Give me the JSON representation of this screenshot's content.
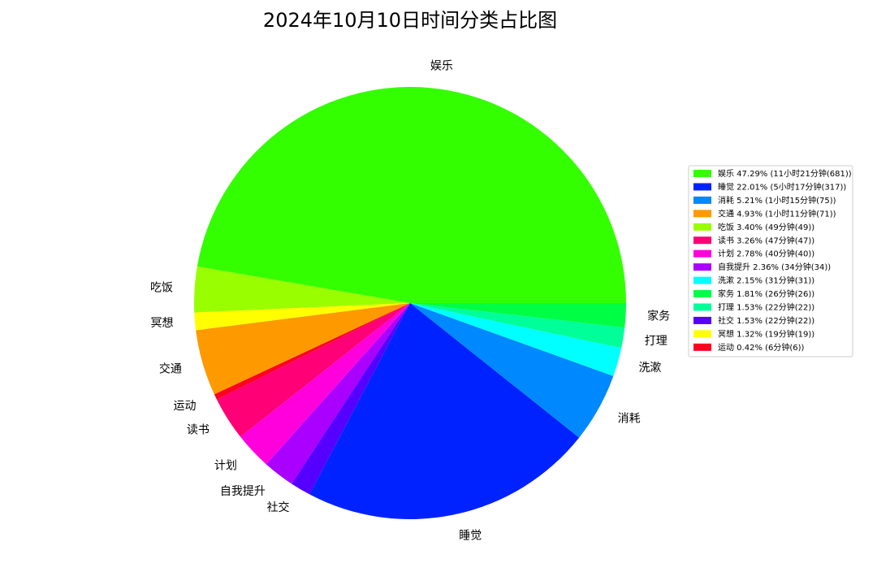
{
  "chart_data": {
    "type": "pie",
    "title": "2024年10月10日时间分类占比图",
    "legend_position": "right",
    "start_angle_deg": 0,
    "direction": "counterclockwise",
    "slices": [
      {
        "label": "娱乐",
        "value": 681,
        "percent_label": "47.29%",
        "duration_label": "11小时21分钟",
        "color": "#33ff00"
      },
      {
        "label": "吃饭",
        "value": 49,
        "percent_label": "3.40%",
        "duration_label": "49分钟",
        "color": "#99ff00"
      },
      {
        "label": "冥想",
        "value": 19,
        "percent_label": "1.32%",
        "duration_label": "19分钟",
        "color": "#ffff00"
      },
      {
        "label": "交通",
        "value": 71,
        "percent_label": "4.93%",
        "duration_label": "1小时11分钟",
        "color": "#ff9900"
      },
      {
        "label": "运动",
        "value": 6,
        "percent_label": "0.42%",
        "duration_label": "6分钟",
        "color": "#ff0022"
      },
      {
        "label": "读书",
        "value": 47,
        "percent_label": "3.26%",
        "duration_label": "47分钟",
        "color": "#ff0077"
      },
      {
        "label": "计划",
        "value": 40,
        "percent_label": "2.78%",
        "duration_label": "40分钟",
        "color": "#ff00dd"
      },
      {
        "label": "自我提升",
        "value": 34,
        "percent_label": "2.36%",
        "duration_label": "34分钟",
        "color": "#aa00ff"
      },
      {
        "label": "社交",
        "value": 22,
        "percent_label": "1.53%",
        "duration_label": "22分钟",
        "color": "#5500ff"
      },
      {
        "label": "睡觉",
        "value": 317,
        "percent_label": "22.01%",
        "duration_label": "5小时17分钟",
        "color": "#0022ff"
      },
      {
        "label": "消耗",
        "value": 75,
        "percent_label": "5.21%",
        "duration_label": "1小时15分钟",
        "color": "#0088ff"
      },
      {
        "label": "洗漱",
        "value": 31,
        "percent_label": "2.15%",
        "duration_label": "31分钟",
        "color": "#00ffff"
      },
      {
        "label": "打理",
        "value": 22,
        "percent_label": "1.53%",
        "duration_label": "22分钟",
        "color": "#00ff99"
      },
      {
        "label": "家务",
        "value": 26,
        "percent_label": "1.81%",
        "duration_label": "26分钟",
        "color": "#00ff44"
      }
    ],
    "legend_order": [
      "娱乐",
      "睡觉",
      "消耗",
      "交通",
      "吃饭",
      "读书",
      "计划",
      "自我提升",
      "洗漱",
      "家务",
      "打理",
      "社交",
      "冥想",
      "运动"
    ]
  }
}
